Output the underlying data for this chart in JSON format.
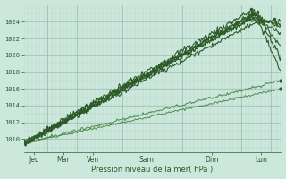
{
  "bg_color": "#cce8dd",
  "plot_bg_color": "#cce8dd",
  "grid_minor_color": "#b8d4c8",
  "grid_major_color": "#a0beb4",
  "line_color_dark": "#2d5a27",
  "line_color_light": "#4a8a44",
  "xlabel": "Pression niveau de la mer( hPa )",
  "yticks": [
    1010,
    1012,
    1014,
    1016,
    1018,
    1020,
    1022,
    1024
  ],
  "ylim": [
    1008.5,
    1026.0
  ],
  "xlim": [
    0,
    130
  ],
  "xtick_labels": [
    "Jeu",
    "Mar",
    "Ven",
    "Sam",
    "Dim",
    "Lun"
  ],
  "xtick_positions": [
    5,
    20,
    35,
    62,
    95,
    120
  ],
  "x_vlines_major": [
    12,
    27,
    50,
    80,
    110,
    125
  ],
  "x_vlines_minor_step": 2
}
